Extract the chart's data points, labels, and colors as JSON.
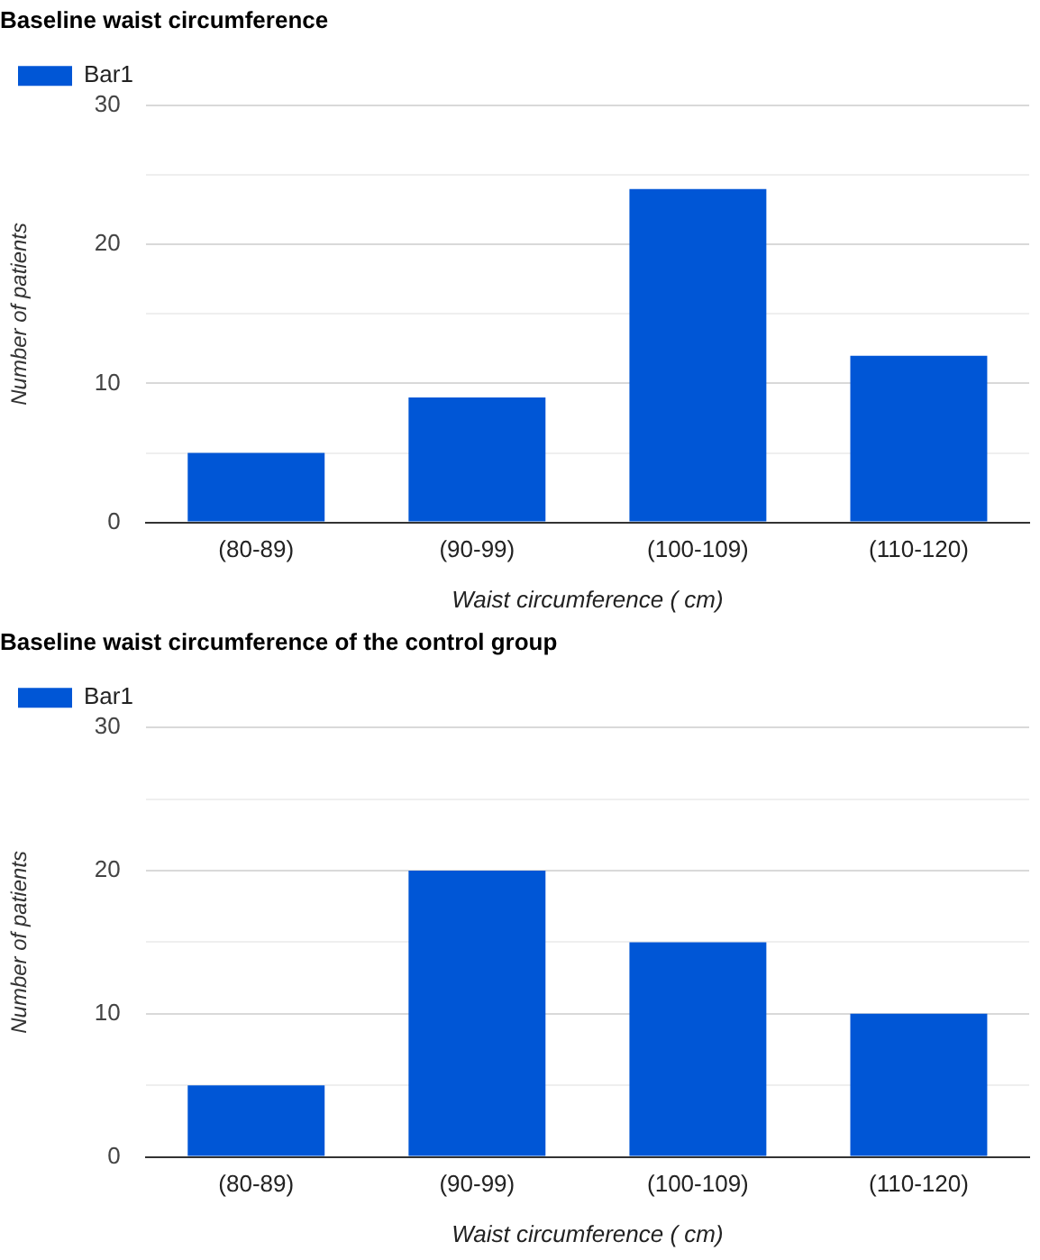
{
  "chart_data": [
    {
      "type": "bar",
      "title": "Baseline waist circumference",
      "xlabel": "Waist circumference ( cm)",
      "ylabel": "Number of patients",
      "categories": [
        "(80-89)",
        "(90-99)",
        "(100-109)",
        "(110-120)"
      ],
      "series": [
        {
          "name": "Bar1",
          "color": "#0056d6",
          "values": [
            5,
            9,
            24,
            12
          ]
        }
      ],
      "ylim": [
        0,
        30
      ],
      "yticks": [
        0,
        {
          "value": 5,
          "label": null
        },
        10,
        {
          "value": 15,
          "label": null
        },
        20,
        {
          "value": 25,
          "label": null
        },
        30
      ],
      "grid": "y",
      "legend": "top left"
    },
    {
      "type": "bar",
      "title": "Baseline waist circumference of the control group",
      "xlabel": "Waist circumference ( cm)",
      "ylabel": "Number of patients",
      "categories": [
        "(80-89)",
        "(90-99)",
        "(100-109)",
        "(110-120)"
      ],
      "series": [
        {
          "name": "Bar1",
          "color": "#0056d6",
          "values": [
            5,
            20,
            15,
            10
          ]
        }
      ],
      "ylim": [
        0,
        30
      ],
      "yticks": [
        0,
        {
          "value": 5,
          "label": null
        },
        10,
        {
          "value": 15,
          "label": null
        },
        20,
        {
          "value": 25,
          "label": null
        },
        30
      ],
      "grid": "y",
      "legend": "top left"
    }
  ]
}
